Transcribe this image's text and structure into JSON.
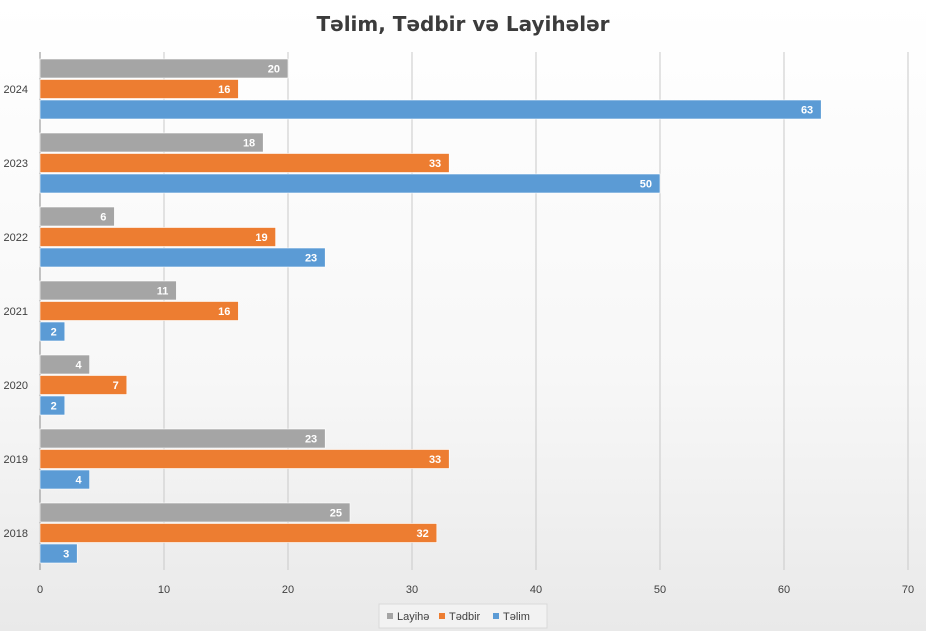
{
  "chart_data": {
    "type": "bar",
    "orientation": "horizontal",
    "title": "Təlim, Tədbir və Layihələr",
    "categories": [
      "2018",
      "2019",
      "2020",
      "2021",
      "2022",
      "2023",
      "2024"
    ],
    "series": [
      {
        "name": "Təlim",
        "color": "#5b9bd5",
        "values": [
          3,
          4,
          2,
          2,
          23,
          50,
          63
        ]
      },
      {
        "name": "Tədbir",
        "color": "#ed7d31",
        "values": [
          32,
          33,
          7,
          16,
          19,
          33,
          16
        ]
      },
      {
        "name": "Layihə",
        "color": "#a5a5a5",
        "values": [
          25,
          23,
          4,
          11,
          6,
          18,
          20
        ]
      }
    ],
    "xlim": [
      0,
      70
    ],
    "xticks": [
      0,
      10,
      20,
      30,
      40,
      50,
      60,
      70
    ],
    "grid": true,
    "legend": {
      "position": "bottom",
      "order": [
        "Layihə",
        "Tədbir",
        "Təlim"
      ]
    },
    "data_labels": true
  }
}
